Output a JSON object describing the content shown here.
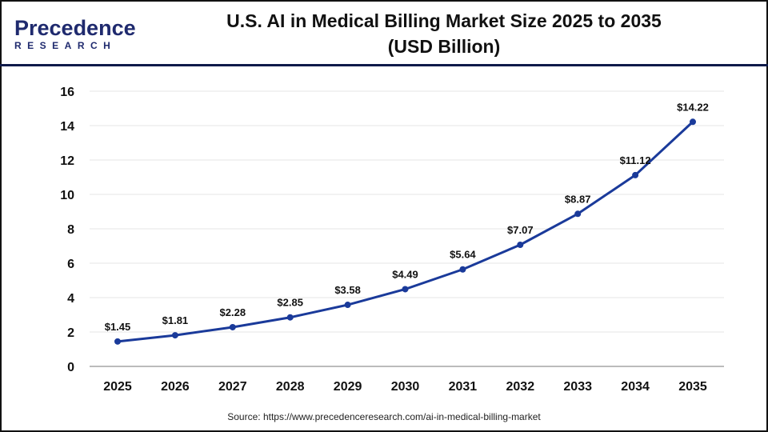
{
  "header": {
    "logo_line1": "Precedence",
    "logo_line2": "RESEARCH",
    "title_line1": "U.S. AI in Medical Billing Market Size 2025 to 2035",
    "title_line2": "(USD Billion)"
  },
  "source": "Source: https://www.precedenceresearch.com/ai-in-medical-billing-market",
  "chart_data": {
    "type": "line",
    "title": "U.S. AI in Medical Billing Market Size 2025 to 2035 (USD Billion)",
    "categories": [
      "2025",
      "2026",
      "2027",
      "2028",
      "2029",
      "2030",
      "2031",
      "2032",
      "2033",
      "2034",
      "2035"
    ],
    "values": [
      1.45,
      1.81,
      2.28,
      2.85,
      3.58,
      4.49,
      5.64,
      7.07,
      8.87,
      11.12,
      14.22
    ],
    "data_labels": [
      "$1.45",
      "$1.81",
      "$2.28",
      "$2.85",
      "$3.58",
      "$4.49",
      "$5.64",
      "$7.07",
      "$8.87",
      "$11.12",
      "$14.22"
    ],
    "ylim": [
      0,
      16
    ],
    "yticks": [
      0,
      2,
      4,
      6,
      8,
      10,
      12,
      14,
      16
    ],
    "grid": true,
    "line_color": "#1a3a9a"
  }
}
